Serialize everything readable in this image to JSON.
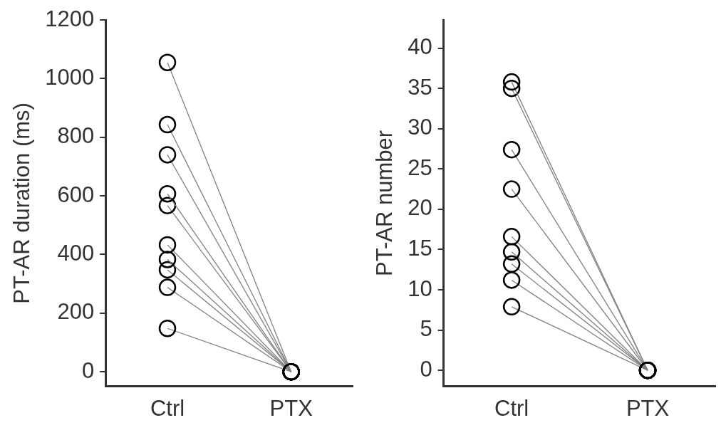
{
  "chart_data": [
    {
      "type": "line",
      "ylabel": "PT-AR duration (ms)",
      "categories": [
        "Ctrl",
        "PTX"
      ],
      "ylim": [
        -50,
        1200
      ],
      "yticks": [
        0,
        200,
        400,
        600,
        800,
        1000,
        1200
      ],
      "grid": false,
      "legend": false,
      "marker": "circle",
      "line_style": "solid",
      "series": [
        {
          "color": "#808080",
          "values": [
            1055,
            0
          ]
        },
        {
          "color": "#808080",
          "values": [
            843,
            0
          ]
        },
        {
          "color": "#808080",
          "values": [
            740,
            0
          ]
        },
        {
          "color": "#808080",
          "values": [
            607,
            0
          ]
        },
        {
          "color": "#808080",
          "values": [
            567,
            0
          ]
        },
        {
          "color": "#808080",
          "values": [
            433,
            0
          ]
        },
        {
          "color": "#808080",
          "values": [
            383,
            0
          ]
        },
        {
          "color": "#808080",
          "values": [
            348,
            0
          ]
        },
        {
          "color": "#808080",
          "values": [
            288,
            0
          ]
        },
        {
          "color": "#808080",
          "values": [
            148,
            0
          ]
        }
      ]
    },
    {
      "type": "line",
      "ylabel": "PT-AR number",
      "categories": [
        "Ctrl",
        "PTX"
      ],
      "ylim": [
        -2,
        43.5
      ],
      "yticks": [
        0,
        5,
        10,
        15,
        20,
        25,
        30,
        35,
        40
      ],
      "grid": false,
      "legend": false,
      "marker": "circle",
      "line_style": "solid",
      "series": [
        {
          "color": "#808080",
          "values": [
            35.8,
            0
          ]
        },
        {
          "color": "#808080",
          "values": [
            35,
            0
          ]
        },
        {
          "color": "#808080",
          "values": [
            27.4,
            0
          ]
        },
        {
          "color": "#808080",
          "values": [
            22.5,
            0
          ]
        },
        {
          "color": "#808080",
          "values": [
            16.6,
            0
          ]
        },
        {
          "color": "#808080",
          "values": [
            14.7,
            0
          ]
        },
        {
          "color": "#808080",
          "values": [
            13.2,
            0
          ]
        },
        {
          "color": "#808080",
          "values": [
            11.2,
            0
          ]
        },
        {
          "color": "#808080",
          "values": [
            7.9,
            0
          ]
        }
      ]
    }
  ]
}
